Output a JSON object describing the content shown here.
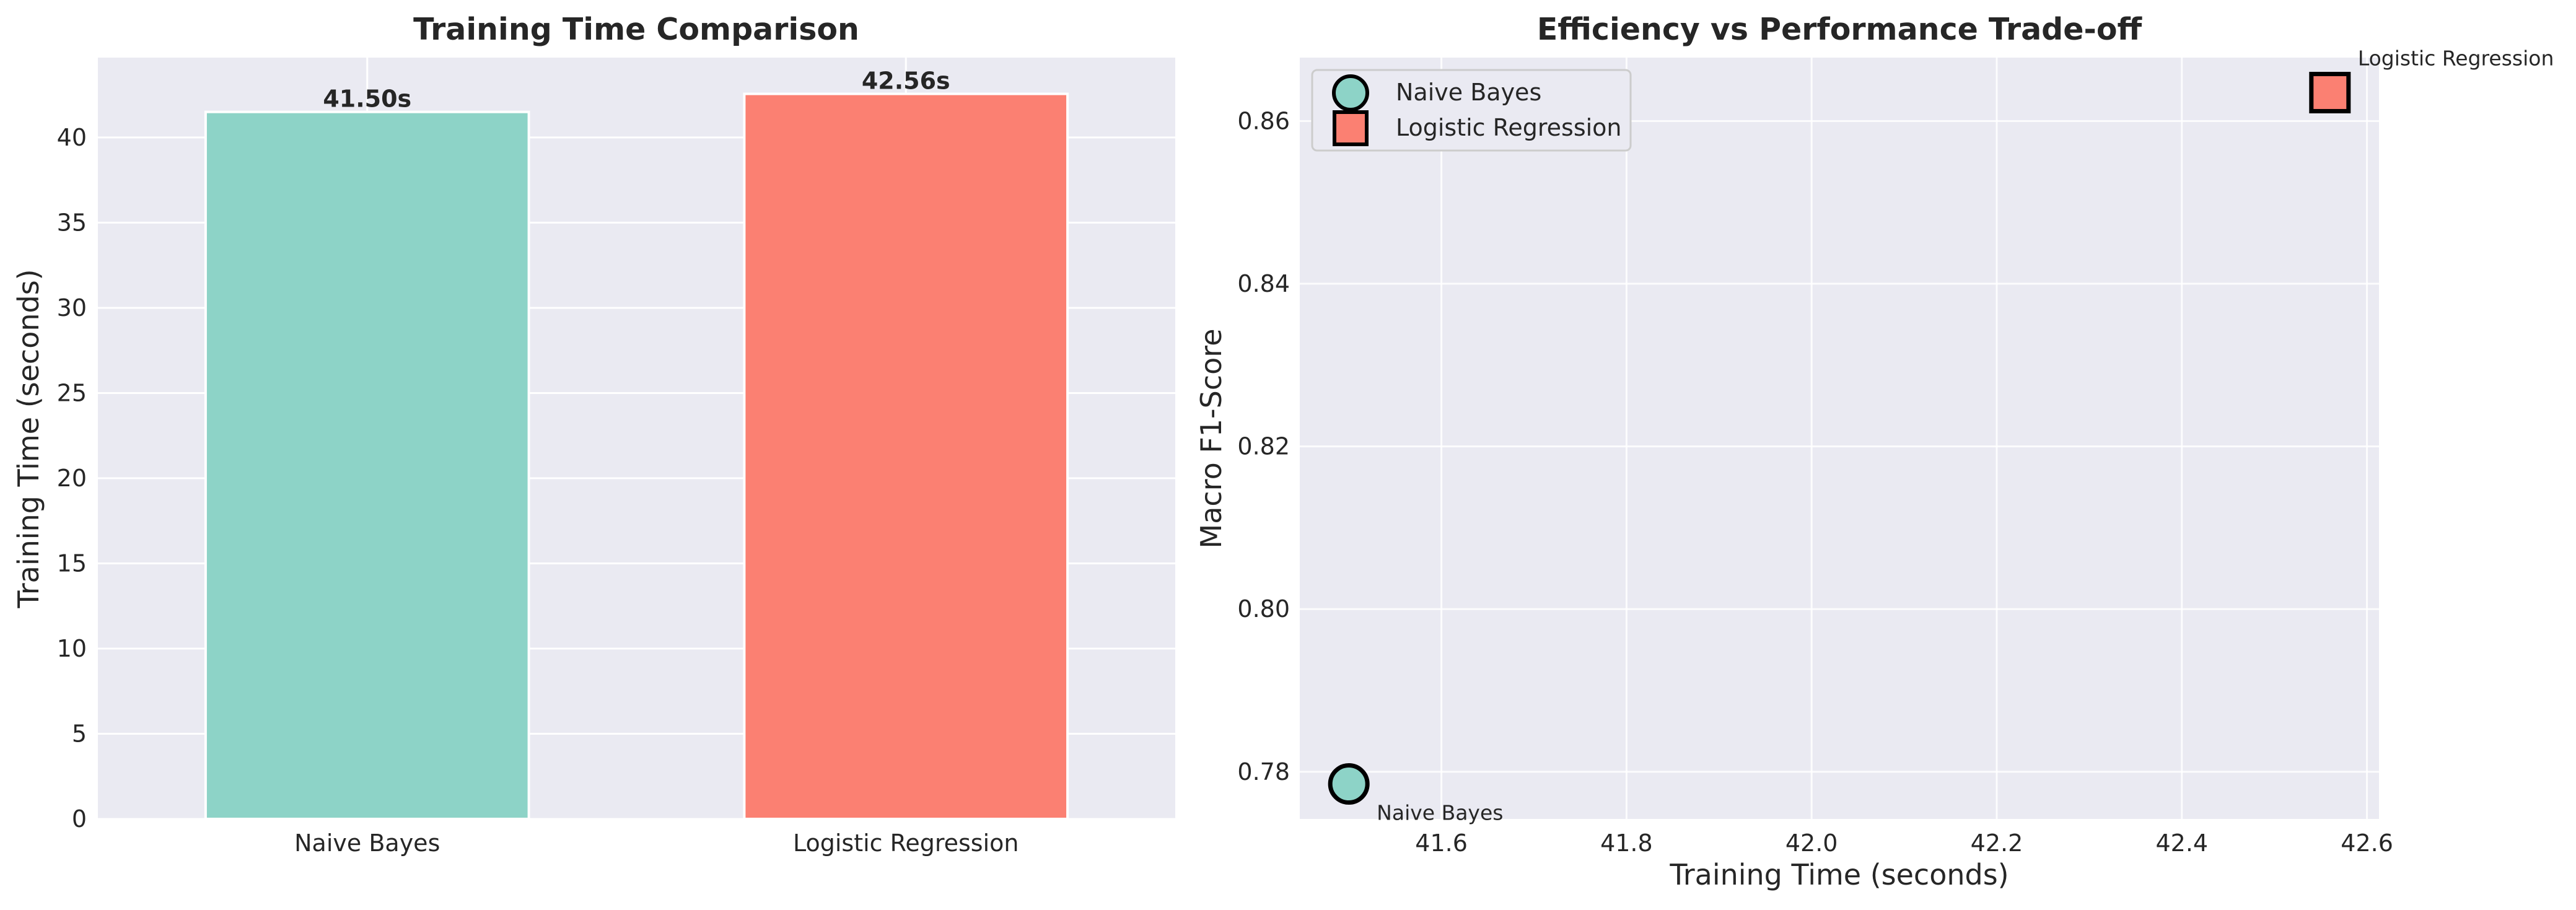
{
  "chart_data": [
    {
      "type": "bar",
      "title": "Training Time Comparison",
      "xlabel": "",
      "ylabel": "Training Time (seconds)",
      "categories": [
        "Naive Bayes",
        "Logistic Regression"
      ],
      "values": [
        41.5,
        42.56
      ],
      "data_labels": [
        "41.50s",
        "42.56s"
      ],
      "colors": [
        "#8dd3c7",
        "#fb8072"
      ],
      "ylim": [
        0,
        44.688
      ],
      "yticks": [
        0,
        5,
        10,
        15,
        20,
        25,
        30,
        35,
        40
      ],
      "grid": true
    },
    {
      "type": "scatter",
      "title": "Efficiency vs Performance Trade-off",
      "xlabel": "Training Time (seconds)",
      "ylabel": "Macro F1-Score",
      "xlim": [
        41.447,
        42.613
      ],
      "ylim": [
        0.7742,
        0.8678
      ],
      "xticks": [
        41.6,
        41.8,
        42.0,
        42.2,
        42.4,
        42.6
      ],
      "xtick_labels": [
        "41.6",
        "41.8",
        "42.0",
        "42.2",
        "42.4",
        "42.6"
      ],
      "yticks": [
        0.78,
        0.8,
        0.82,
        0.84,
        0.86
      ],
      "ytick_labels": [
        "0.78",
        "0.80",
        "0.82",
        "0.84",
        "0.86"
      ],
      "grid": true,
      "legend_position": "top-left",
      "series": [
        {
          "name": "Naive Bayes",
          "marker": "circle",
          "color": "#8dd3c7",
          "x": [
            41.5
          ],
          "y": [
            0.7785
          ],
          "annotation": "Naive Bayes"
        },
        {
          "name": "Logistic Regression",
          "marker": "square",
          "color": "#fb8072",
          "x": [
            42.56
          ],
          "y": [
            0.8635
          ],
          "annotation": "Logistic Regression"
        }
      ]
    }
  ],
  "colors": {
    "plot_background": "#eaeaf2",
    "grid": "#ffffff",
    "text": "#262626",
    "marker_edge": "#000000"
  }
}
